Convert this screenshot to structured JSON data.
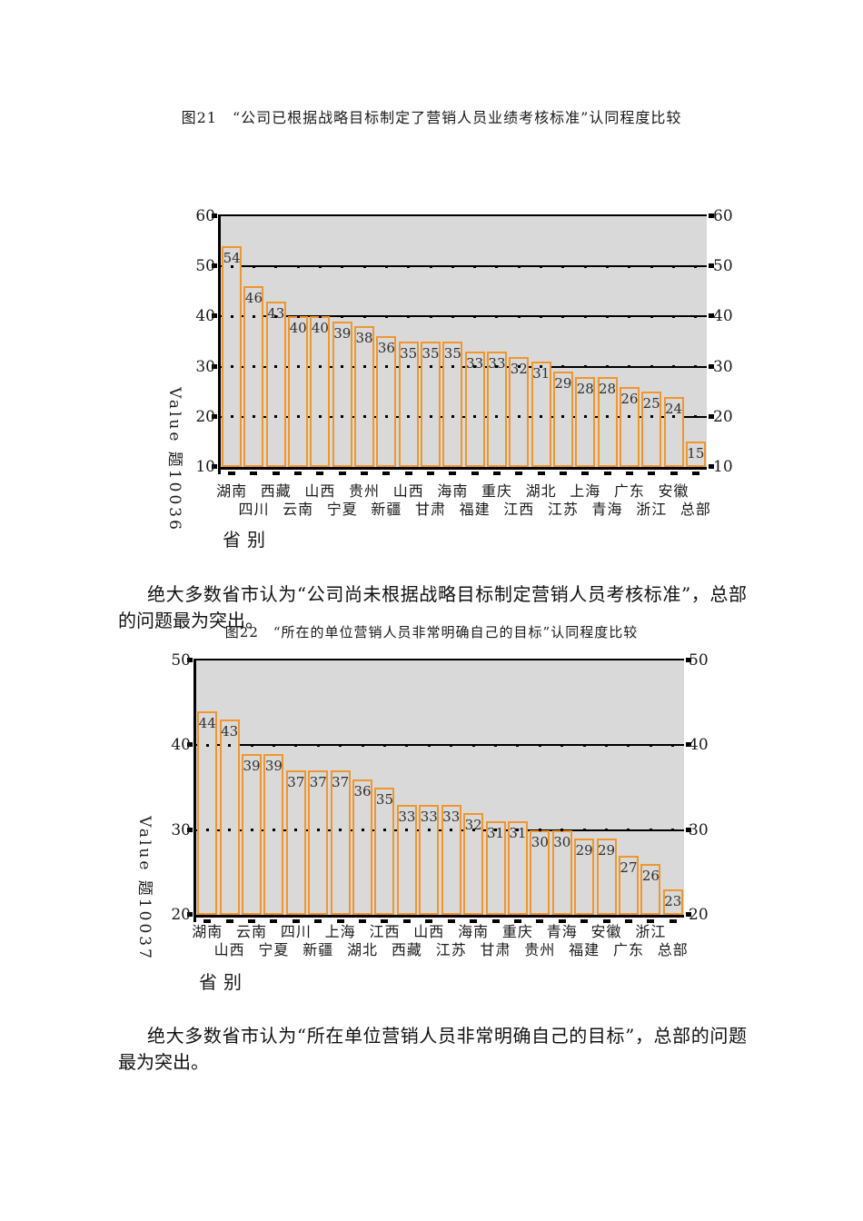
{
  "document": {
    "paragraph1": "绝大多数省市认为“公司尚未根据战略目标制定营销人员考核标准”，总部的问题最为突出。",
    "paragraph2": "绝大多数省市认为“所在单位营销人员非常明确自己的目标”，总部的问题最为突出。"
  },
  "chart_data": [
    {
      "type": "bar",
      "figure_label": "图21",
      "title": "图21　“公司已根据战略目标制定了营销人员业绩考核标准”认同程度比较",
      "categories": [
        "湖南",
        "四川",
        "西藏",
        "云南",
        "山西",
        "宁夏",
        "贵州",
        "新疆",
        "山西",
        "甘肃",
        "海南",
        "福建",
        "重庆",
        "江西",
        "湖北",
        "江苏",
        "上海",
        "青海",
        "广东",
        "浙江",
        "安徽",
        "总部"
      ],
      "values": [
        54,
        46,
        43,
        40,
        40,
        39,
        38,
        36,
        35,
        35,
        35,
        33,
        33,
        32,
        31,
        29,
        28,
        28,
        26,
        25,
        24,
        15
      ],
      "ylabel": "Value 题10036",
      "xlabel": "省别",
      "ylim": [
        10,
        60
      ],
      "yticks": [
        10,
        20,
        30,
        40,
        50,
        60
      ],
      "gridlines": [
        20,
        30,
        40,
        50
      ],
      "grid": true,
      "legend": "none",
      "colors": {
        "plot_bg": "#d9d9d9",
        "bar_fill": "#d9d9d9",
        "bar_border": "#f0962d",
        "axis": "#000000",
        "text": "#1a1a1a",
        "value_label": "#2e2e2e"
      }
    },
    {
      "type": "bar",
      "figure_label": "图22",
      "title": "图22　“所在的单位营销人员非常明确自己的目标”认同程度比较",
      "categories": [
        "湖南",
        "山西",
        "云南",
        "宁夏",
        "四川",
        "新疆",
        "上海",
        "湖北",
        "江西",
        "西藏",
        "山西",
        "江苏",
        "海南",
        "甘肃",
        "重庆",
        "贵州",
        "青海",
        "福建",
        "安徽",
        "广东",
        "浙江",
        "总部"
      ],
      "values": [
        44,
        43,
        39,
        39,
        37,
        37,
        37,
        36,
        35,
        33,
        33,
        33,
        32,
        31,
        31,
        30,
        30,
        29,
        29,
        27,
        26,
        23
      ],
      "ylabel": "Value 题10037",
      "xlabel": "省别",
      "ylim": [
        20,
        50
      ],
      "yticks": [
        20,
        30,
        40,
        50
      ],
      "gridlines": [
        30,
        40
      ],
      "grid": true,
      "legend": "none",
      "colors": {
        "plot_bg": "#d9d9d9",
        "bar_fill": "#d9d9d9",
        "bar_border": "#f0962d",
        "axis": "#000000",
        "text": "#1a1a1a",
        "value_label": "#2e2e2e"
      }
    }
  ]
}
